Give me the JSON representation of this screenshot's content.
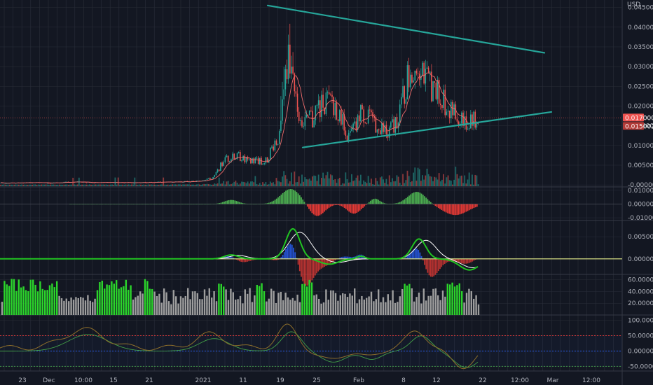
{
  "chart_data": [
    {
      "panel": "price",
      "type": "candlestick",
      "currency_label": "USD",
      "y_ticks": [
        "0.045000",
        "0.040000",
        "0.035000",
        "0.030000",
        "0.025000",
        "0.020000",
        "0.015000",
        "0.010000",
        "0.005000",
        "-0.000000"
      ],
      "last_price_label": "0.017000",
      "secondary_price_label": "0.015002",
      "ylim": [
        -0.0005,
        0.046
      ],
      "series": [
        {
          "name": "",
          "kind": "candles",
          "points": [
            {
              "t": 0.0,
              "close": 0.0005
            },
            {
              "t": 50,
              "close": 0.0006
            },
            {
              "t": 72,
              "close": 0.0005
            },
            {
              "t": 105,
              "close": 0.0008
            },
            {
              "t": 130,
              "close": 0.0006
            },
            {
              "t": 200,
              "close": 0.0006
            },
            {
              "t": 280,
              "close": 0.0009
            },
            {
              "t": 305,
              "close": 0.0018
            },
            {
              "t": 320,
              "close": 0.0065
            },
            {
              "t": 340,
              "close": 0.0075
            },
            {
              "t": 355,
              "close": 0.0058
            },
            {
              "t": 380,
              "close": 0.0062
            },
            {
              "t": 400,
              "close": 0.013
            },
            {
              "t": 408,
              "close": 0.028
            },
            {
              "t": 413,
              "close": 0.032
            },
            {
              "t": 420,
              "close": 0.022
            },
            {
              "t": 435,
              "close": 0.015
            },
            {
              "t": 445,
              "close": 0.017
            },
            {
              "t": 460,
              "close": 0.021
            },
            {
              "t": 480,
              "close": 0.0195
            },
            {
              "t": 498,
              "close": 0.012
            },
            {
              "t": 515,
              "close": 0.018
            },
            {
              "t": 535,
              "close": 0.0155
            },
            {
              "t": 555,
              "close": 0.0135
            },
            {
              "t": 570,
              "close": 0.0175
            },
            {
              "t": 585,
              "close": 0.03
            },
            {
              "t": 595,
              "close": 0.032
            },
            {
              "t": 610,
              "close": 0.026
            },
            {
              "t": 630,
              "close": 0.022
            },
            {
              "t": 650,
              "close": 0.018
            },
            {
              "t": 665,
              "close": 0.0155
            },
            {
              "t": 683,
              "close": 0.017
            }
          ]
        }
      ],
      "trendlines": [
        {
          "from": {
            "t": 382,
            "price": 0.0455
          },
          "to": {
            "t": 777,
            "price": 0.0335
          }
        },
        {
          "from": {
            "t": 432,
            "price": 0.0095
          },
          "to": {
            "t": 787,
            "price": 0.0185
          }
        }
      ]
    },
    {
      "panel": "histogram-oscillator",
      "type": "bar",
      "y_ticks": [
        "0.010000",
        "0.000000",
        "-0.010000"
      ],
      "ylim": [
        -0.012,
        0.012
      ]
    },
    {
      "panel": "macd",
      "type": "line",
      "y_ticks": [
        "0.005000",
        "0.000000"
      ],
      "ylim": [
        -0.0035,
        0.0085
      ]
    },
    {
      "panel": "volume-strength",
      "type": "bar",
      "y_ticks": [
        "60.000000",
        "40.000000",
        "20.000000"
      ],
      "ylim": [
        0,
        68
      ]
    },
    {
      "panel": "oscillator",
      "type": "line",
      "y_ticks": [
        "100.000000",
        "50.000000",
        "0.000000",
        "-50.000000"
      ],
      "ylim": [
        -65,
        115
      ],
      "bands": [
        {
          "value": 50,
          "color": "#e53935"
        },
        {
          "value": -50,
          "color": "#43a047"
        },
        {
          "value": 0,
          "color": "#2962ff"
        }
      ]
    }
  ],
  "time_axis": {
    "labels": [
      "23",
      "Dec",
      "10:00",
      "15",
      "21",
      "2021",
      "11",
      "19",
      "25",
      "Feb",
      "8",
      "12",
      "22",
      "12:00",
      "Mar",
      "12:00"
    ]
  },
  "colors": {
    "background": "#131722",
    "grid": "#2a2e39",
    "up": "#26a69a",
    "down": "#ef5350",
    "trendline": "#26a69a",
    "last_price": "#ef5350",
    "hist_up": "#4caf50",
    "hist_down": "#e53935",
    "vol_green": "#2bd52b",
    "vol_gray": "#9e9e9e",
    "macd_line": "#21c521",
    "signal_line": "#ffffff",
    "ma_line": "#f06c6c",
    "zero_line": "#e8f08c"
  }
}
